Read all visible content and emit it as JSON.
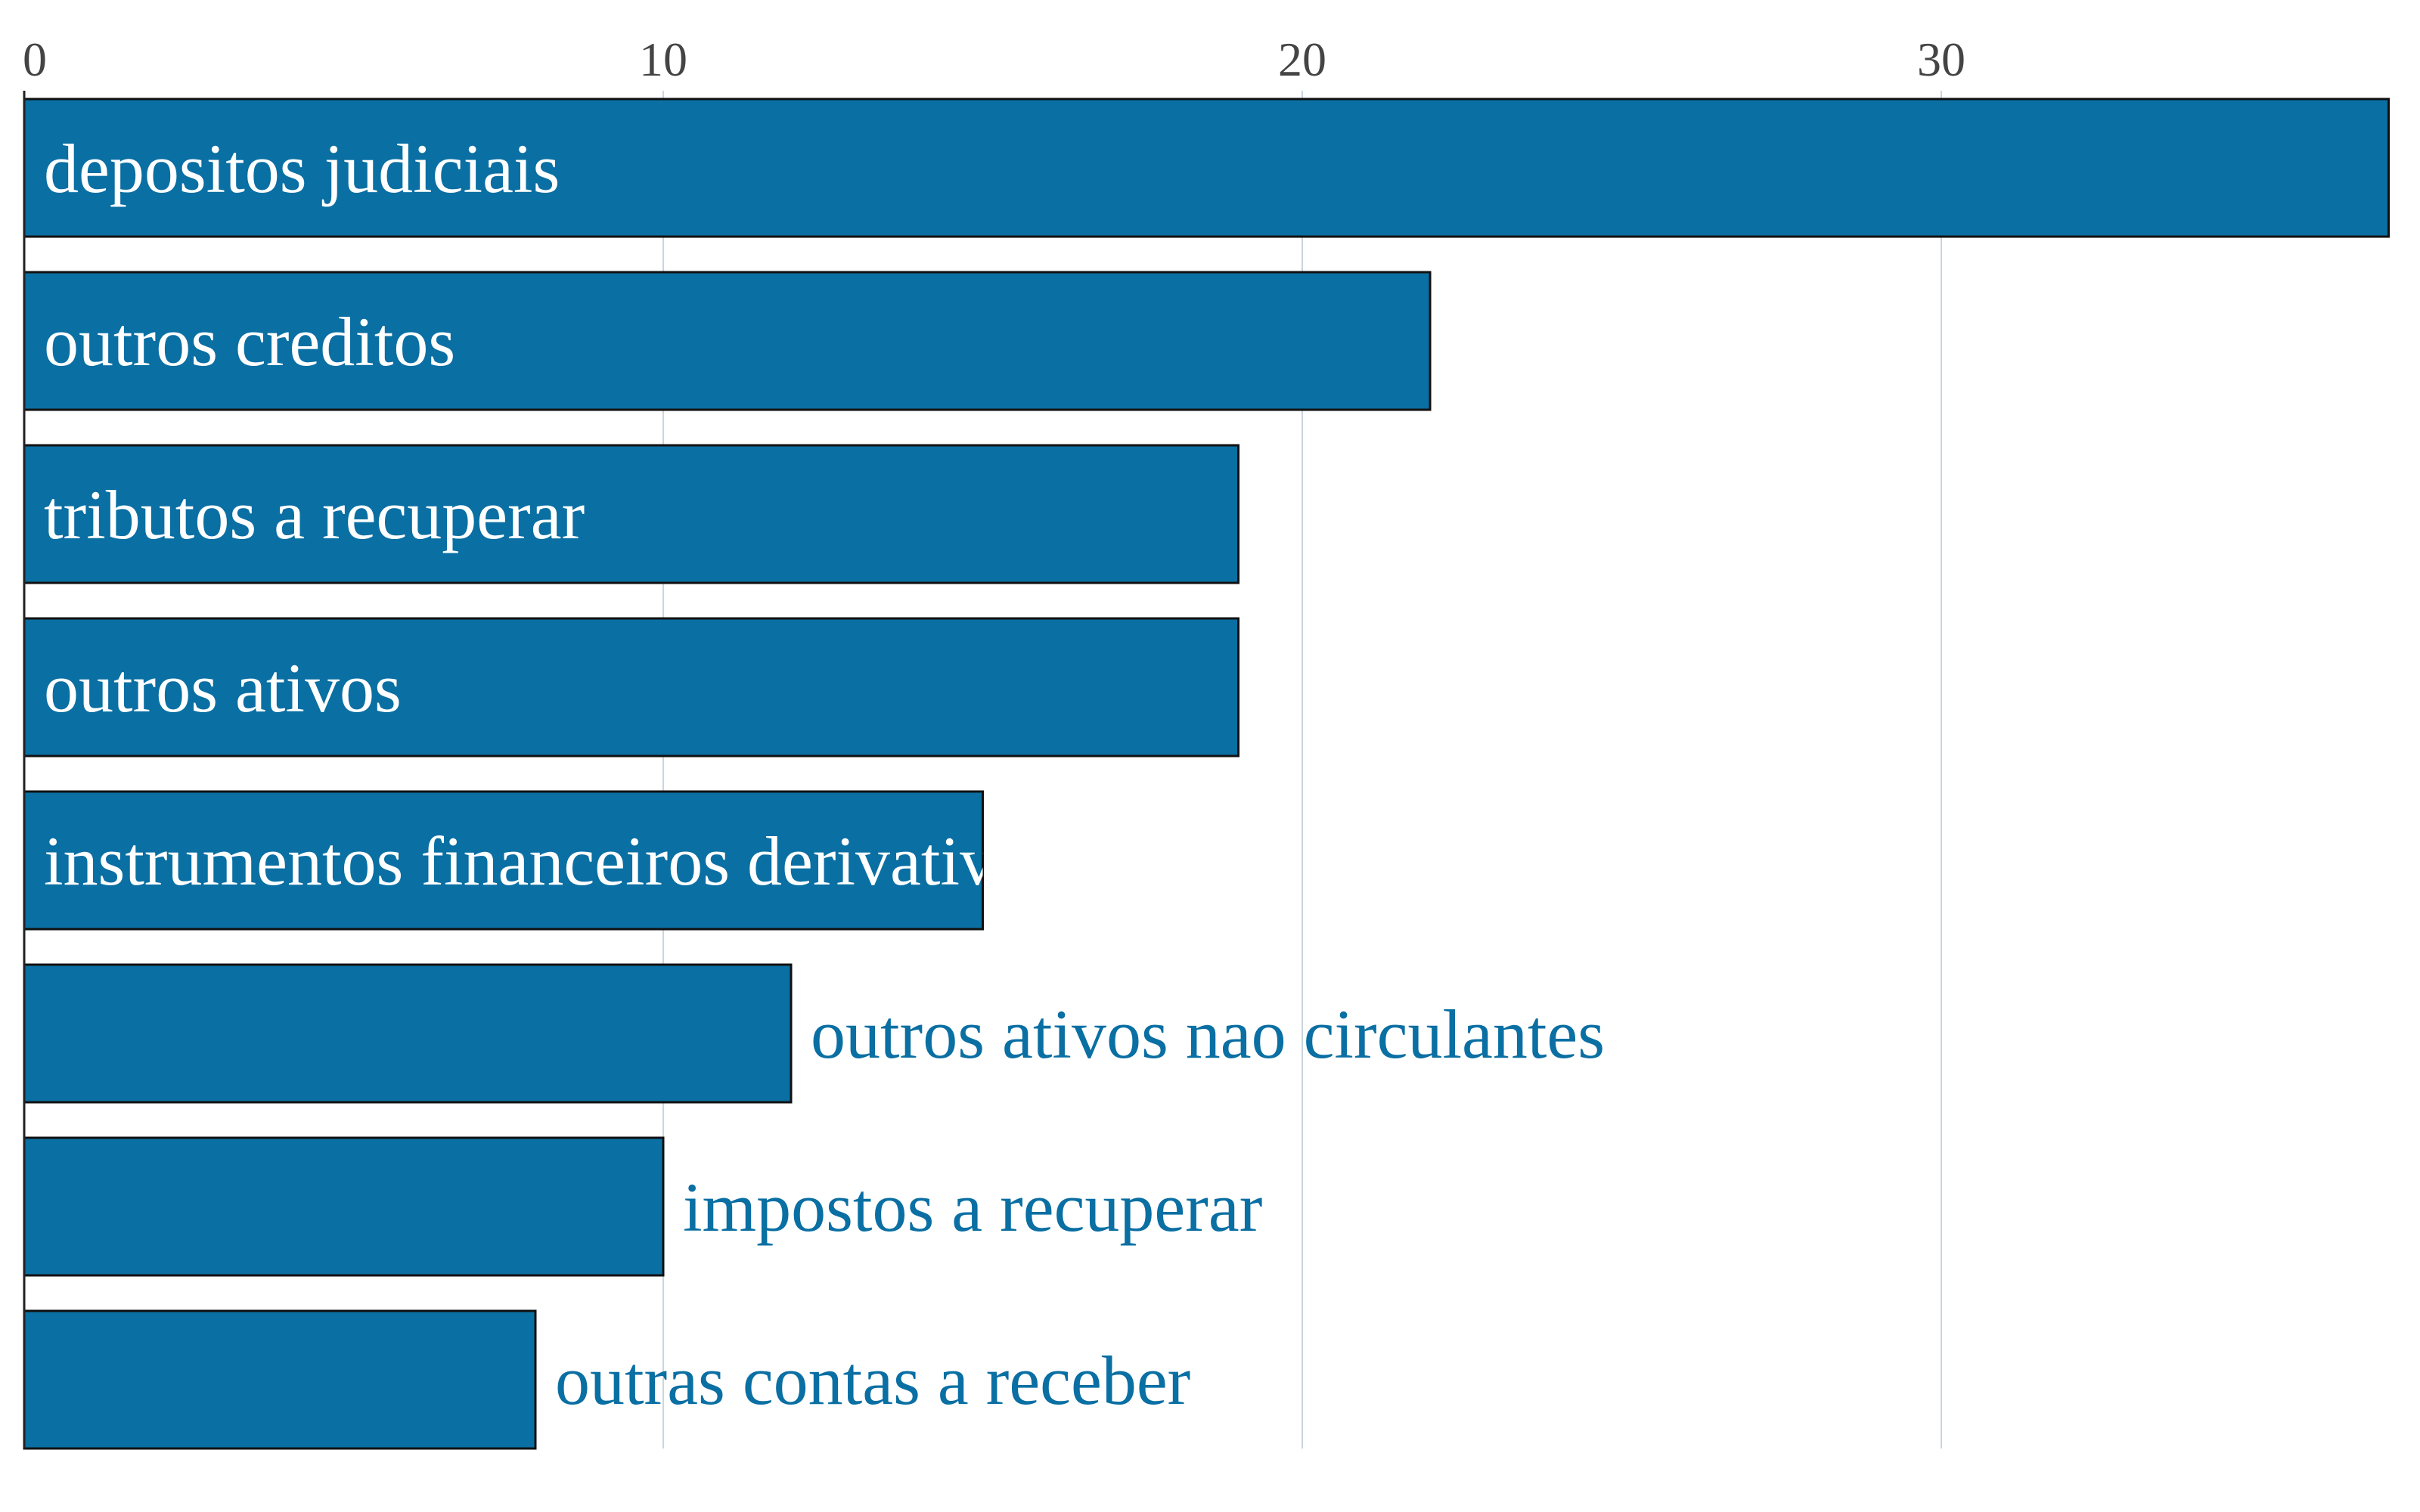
{
  "chart_data": {
    "type": "bar",
    "orientation": "horizontal",
    "categories": [
      "depositos judiciais",
      "outros creditos",
      "tributos a recuperar",
      "outros ativos",
      "instrumentos financeiros derivativos",
      "outros ativos nao circulantes",
      "impostos a recuperar",
      "outras contas a receber"
    ],
    "values": [
      37,
      22,
      19,
      19,
      15,
      12,
      10,
      8
    ],
    "xlim": [
      0,
      37
    ],
    "xticks": [
      0,
      10,
      20,
      30
    ],
    "title": "",
    "xlabel": "",
    "ylabel": "",
    "grid": true,
    "x_axis_position": "top",
    "labels_inside_bars_for_values_at_least": 15,
    "colors": {
      "bar": "#0a6fa3",
      "bar_outline": "#111111",
      "label_inside": "#ffffff",
      "label_outside": "#0a6fa3",
      "gridline": "#c9d5e0",
      "tick_text": "#444444"
    }
  }
}
